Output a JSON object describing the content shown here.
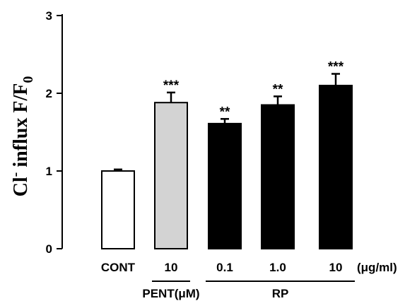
{
  "chart_data": {
    "type": "bar",
    "categories": [
      "CONT",
      "10",
      "0.1",
      "1.0",
      "10"
    ],
    "values": [
      1.0,
      1.88,
      1.61,
      1.85,
      2.1
    ],
    "errors": [
      0.02,
      0.13,
      0.06,
      0.11,
      0.15
    ],
    "significance": [
      "",
      "***",
      "**",
      "**",
      "***"
    ],
    "bar_colors": [
      "#ffffff",
      "#d3d3d3",
      "#000000",
      "#000000",
      "#000000"
    ],
    "ylim": [
      0,
      3
    ],
    "yticks": [
      "0",
      "1",
      "2",
      "3"
    ],
    "ylabel": {
      "main": "Cl",
      "superscript": "-",
      "rest": " influx F/F",
      "subscript": "0"
    },
    "unit_label": "(μg/ml)",
    "groups": [
      {
        "label": "PENT(μM)",
        "from": 1,
        "to": 1
      },
      {
        "label": "RP",
        "from": 2,
        "to": 4
      }
    ],
    "grid": false,
    "legend": "none"
  }
}
